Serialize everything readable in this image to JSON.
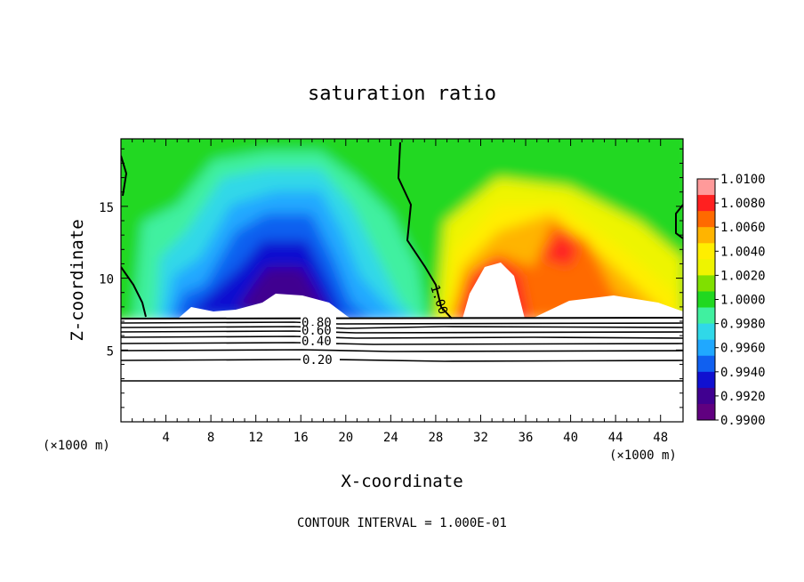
{
  "chart_data": {
    "type": "heatmap",
    "title": "saturation ratio",
    "xlabel": "X-coordinate",
    "ylabel": "Z-coordinate",
    "x_unit": "(×1000 m)",
    "x_ticks": [
      "4",
      "8",
      "12",
      "16",
      "20",
      "24",
      "28",
      "32",
      "36",
      "40",
      "44",
      "48"
    ],
    "y_ticks": [
      "5",
      "10",
      "15"
    ],
    "xlim": [
      0,
      50
    ],
    "ylim": [
      0,
      19.7
    ],
    "colorbar": {
      "min": 0.99,
      "max": 1.01,
      "labels": [
        "1.0100",
        "1.0080",
        "1.0060",
        "1.0040",
        "1.0020",
        "1.0000",
        "0.9980",
        "0.9960",
        "0.9940",
        "0.9920",
        "0.9900"
      ],
      "colors": [
        "#ff9a9a",
        "#ff2020",
        "#ff6a00",
        "#ffb400",
        "#ffee00",
        "#eef400",
        "#80e000",
        "#20d820",
        "#40f0a0",
        "#30d8e8",
        "#20a8ff",
        "#1060f0",
        "#1010d0",
        "#400090",
        "#600080"
      ]
    },
    "contour_lines": [
      {
        "label": "1.00",
        "level": 1.0
      },
      {
        "label": "0.80",
        "level": 0.8
      },
      {
        "label": "0.60",
        "level": 0.6
      },
      {
        "label": "0.40",
        "level": 0.4
      },
      {
        "label": "0.20",
        "level": 0.2
      }
    ],
    "footer": "CONTOUR INTERVAL = 1.000E-01",
    "ground_top_z": 7.1
  }
}
